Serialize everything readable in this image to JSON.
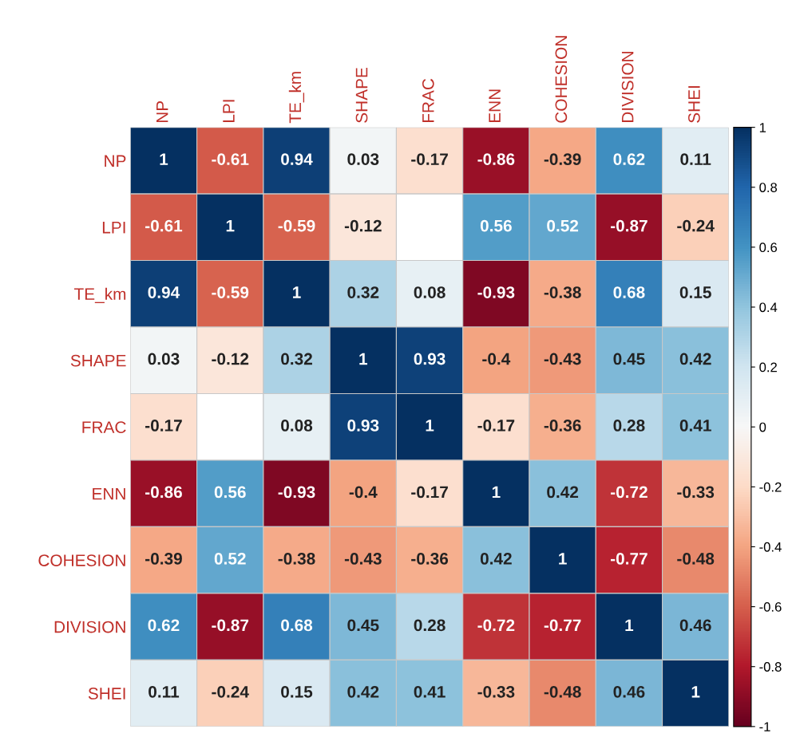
{
  "chart_data": {
    "type": "heatmap",
    "categories": [
      "NP",
      "LPI",
      "TE_km",
      "SHAPE",
      "FRAC",
      "ENN",
      "COHESION",
      "DIVISION",
      "SHEI"
    ],
    "y_categories": [
      "NP",
      "LPI",
      "TE_km",
      "SHAPE",
      "FRAC",
      "ENN",
      "COHESION",
      "DIVISION",
      "SHEI"
    ],
    "cells": [
      [
        1,
        -0.61,
        0.94,
        0.03,
        -0.17,
        -0.86,
        -0.39,
        0.62,
        0.11
      ],
      [
        -0.61,
        1,
        -0.59,
        -0.12,
        null,
        0.56,
        0.52,
        -0.87,
        -0.24
      ],
      [
        0.94,
        -0.59,
        1,
        0.32,
        0.08,
        -0.93,
        -0.38,
        0.68,
        0.15
      ],
      [
        0.03,
        -0.12,
        0.32,
        1,
        0.93,
        -0.4,
        -0.43,
        0.45,
        0.42
      ],
      [
        -0.17,
        null,
        0.08,
        0.93,
        1,
        -0.17,
        -0.36,
        0.28,
        0.41
      ],
      [
        -0.86,
        0.56,
        -0.93,
        -0.4,
        -0.17,
        1,
        0.42,
        -0.72,
        -0.33
      ],
      [
        -0.39,
        0.52,
        -0.38,
        -0.43,
        -0.36,
        0.42,
        1,
        -0.77,
        -0.48
      ],
      [
        0.62,
        -0.87,
        0.68,
        0.45,
        0.28,
        -0.72,
        -0.77,
        1,
        0.46
      ],
      [
        0.11,
        -0.24,
        0.15,
        0.42,
        0.41,
        -0.33,
        -0.48,
        0.46,
        1
      ]
    ],
    "data_labels": true,
    "clim": [
      -1,
      1
    ],
    "cticks": [
      -1,
      -0.8,
      -0.6,
      -0.4,
      -0.2,
      0,
      0.2,
      0.4,
      0.6,
      0.8,
      1
    ]
  }
}
